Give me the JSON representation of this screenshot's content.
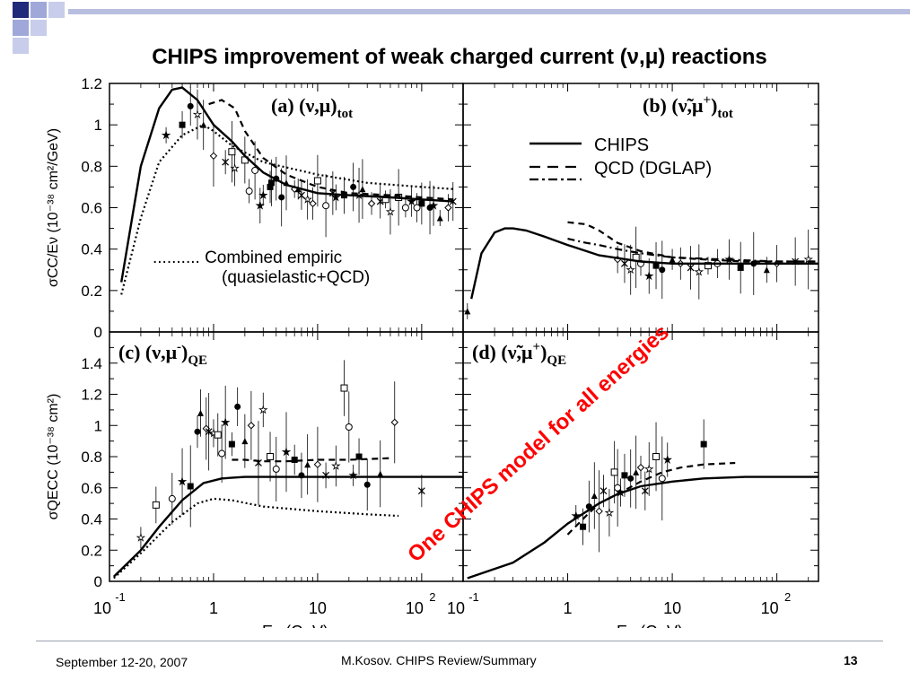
{
  "slide": {
    "title": "CHIPS improvement of weak charged current (ν,μ) reactions",
    "footer_date": "September 12-20, 2007",
    "footer_center": "M.Kosov. CHIPS Review/Summary",
    "page_number": "13",
    "banner": "One CHIPS model for all energies",
    "banner_color": "#ff0000",
    "accent_color": "#1f2a7a"
  },
  "chart_data": [
    {
      "type": "line",
      "panel": "(a) (ν,μ)tot",
      "title": "(a) (ν,μ)",
      "title_sub": "tot",
      "ylabel": "σCC/Eν (10⁻³⁸ cm²/GeV)",
      "yticks": [
        "1.2",
        "1",
        "0.8",
        "0.6",
        "0.4",
        "0.2",
        "0"
      ],
      "ylim": [
        0,
        1.2
      ],
      "xlim": [
        0.1,
        250
      ],
      "xscale": "log",
      "annotation": ".......... Combined empiric",
      "annotation2": "(quasielastic+QCD)",
      "series": [
        {
          "name": "CHIPS",
          "style": "solid",
          "x": [
            0.13,
            0.2,
            0.3,
            0.4,
            0.5,
            0.7,
            1,
            1.5,
            2,
            3,
            5,
            10,
            20,
            50,
            100,
            200
          ],
          "y": [
            0.24,
            0.8,
            1.08,
            1.17,
            1.18,
            1.12,
            1.0,
            0.92,
            0.85,
            0.77,
            0.71,
            0.67,
            0.66,
            0.65,
            0.64,
            0.63
          ]
        },
        {
          "name": "QCD (DGLAP)",
          "style": "dashed",
          "x": [
            0.9,
            1.2,
            1.6,
            2,
            3,
            5,
            10,
            20,
            50,
            100,
            200
          ],
          "y": [
            1.1,
            1.12,
            1.08,
            0.97,
            0.84,
            0.76,
            0.7,
            0.67,
            0.66,
            0.65,
            0.64
          ]
        },
        {
          "name": "Combined empiric",
          "style": "dotted",
          "x": [
            0.13,
            0.2,
            0.3,
            0.5,
            0.8,
            1,
            1.5,
            3,
            10,
            30,
            100,
            200
          ],
          "y": [
            0.18,
            0.55,
            0.82,
            0.95,
            1.0,
            0.97,
            0.9,
            0.82,
            0.76,
            0.72,
            0.7,
            0.69
          ]
        }
      ],
      "points": {
        "x": [
          0.35,
          0.5,
          0.6,
          0.8,
          1.0,
          1.3,
          1.6,
          2.0,
          2.5,
          3.0,
          3.5,
          4.0,
          5.0,
          6.0,
          7.0,
          8.0,
          10,
          12,
          15,
          18,
          22,
          27,
          33,
          40,
          50,
          60,
          70,
          80,
          100,
          120,
          150,
          180,
          200,
          0.7,
          1.5,
          2.2,
          2.8,
          3.6,
          4.5,
          6.5,
          9,
          14,
          25,
          45,
          90,
          130
        ],
        "y": [
          0.95,
          1.0,
          1.09,
          1.0,
          0.85,
          0.82,
          0.79,
          0.83,
          0.78,
          0.66,
          0.7,
          0.74,
          0.72,
          0.69,
          0.66,
          0.64,
          0.73,
          0.61,
          0.65,
          0.66,
          0.7,
          0.69,
          0.62,
          0.63,
          0.58,
          0.65,
          0.6,
          0.63,
          0.62,
          0.6,
          0.55,
          0.6,
          0.63,
          1.05,
          0.87,
          0.68,
          0.61,
          0.72,
          0.65,
          0.69,
          0.62,
          0.67,
          0.66,
          0.64,
          0.6,
          0.61
        ]
      }
    },
    {
      "type": "line",
      "panel": "(b) (ν̃,μ+)tot",
      "title": "(b) (ν̃,μ",
      "title_sup": "+",
      "title_end": ")",
      "title_sub": "tot",
      "xlim": [
        0.1,
        250
      ],
      "xscale": "log",
      "ylim": [
        0,
        1.2
      ],
      "legend": [
        "CHIPS",
        "QCD (DGLAP)"
      ],
      "series": [
        {
          "name": "CHIPS",
          "style": "solid",
          "x": [
            0.12,
            0.15,
            0.2,
            0.25,
            0.3,
            0.4,
            0.6,
            1,
            2,
            5,
            10,
            30,
            100,
            250
          ],
          "y": [
            0.16,
            0.38,
            0.48,
            0.5,
            0.5,
            0.49,
            0.46,
            0.42,
            0.37,
            0.34,
            0.33,
            0.33,
            0.33,
            0.33
          ]
        },
        {
          "name": "QCD (DGLAP)",
          "style": "dashed",
          "x": [
            1,
            1.5,
            2,
            3,
            5,
            10,
            20,
            50,
            100,
            250
          ],
          "y": [
            0.53,
            0.52,
            0.49,
            0.43,
            0.39,
            0.36,
            0.35,
            0.34,
            0.34,
            0.34
          ]
        },
        {
          "name": "Combined empiric",
          "style": "dashdot",
          "x": [
            1,
            1.5,
            2,
            3,
            5,
            10,
            30,
            100,
            250
          ],
          "y": [
            0.45,
            0.43,
            0.42,
            0.4,
            0.38,
            0.36,
            0.35,
            0.34,
            0.34
          ]
        }
      ],
      "points": {
        "x": [
          0.11,
          3,
          3.5,
          4,
          4.5,
          5,
          6,
          7,
          8,
          10,
          12,
          15,
          18,
          22,
          27,
          35,
          45,
          60,
          80,
          100,
          150,
          200
        ],
        "y": [
          0.1,
          0.35,
          0.33,
          0.3,
          0.36,
          0.33,
          0.27,
          0.32,
          0.3,
          0.35,
          0.33,
          0.31,
          0.29,
          0.32,
          0.33,
          0.35,
          0.31,
          0.33,
          0.3,
          0.33,
          0.34,
          0.35
        ]
      }
    },
    {
      "type": "line",
      "panel": "(c) (ν,μ-)QE",
      "title": "(c) (ν,μ",
      "title_sup": "-",
      "title_end": ")",
      "title_sub": "QE",
      "ylabel": "σQECC (10⁻³⁸ cm²)",
      "yticks": [
        "1.4",
        "1.2",
        "1",
        "0.8",
        "0.6",
        "0.4",
        "0.2",
        "0"
      ],
      "ylim": [
        0,
        1.6
      ],
      "xlim": [
        0.1,
        250
      ],
      "xscale": "log",
      "xticks": [
        "10",
        "1",
        "10",
        "10"
      ],
      "xtick_exps": [
        "-1",
        "",
        "",
        "2"
      ],
      "xlabel": "Eν (GeV)",
      "series": [
        {
          "name": "CHIPS",
          "style": "solid",
          "x": [
            0.11,
            0.2,
            0.3,
            0.5,
            0.8,
            1.2,
            2,
            5,
            10,
            30,
            100,
            250
          ],
          "y": [
            0.03,
            0.2,
            0.35,
            0.52,
            0.63,
            0.66,
            0.67,
            0.67,
            0.67,
            0.67,
            0.67,
            0.67
          ]
        },
        {
          "name": "QCD (DGLAP)",
          "style": "dashed",
          "x": [
            1.5,
            2,
            3,
            5,
            10,
            20,
            50
          ],
          "y": [
            0.78,
            0.78,
            0.77,
            0.77,
            0.78,
            0.78,
            0.79
          ]
        },
        {
          "name": "Combined empiric",
          "style": "dotted",
          "x": [
            0.11,
            0.2,
            0.4,
            0.7,
            1.0,
            1.5,
            3,
            10,
            30,
            60
          ],
          "y": [
            0.02,
            0.18,
            0.38,
            0.5,
            0.53,
            0.52,
            0.48,
            0.45,
            0.43,
            0.42
          ]
        }
      ],
      "points": {
        "x": [
          0.2,
          0.28,
          0.4,
          0.5,
          0.6,
          0.7,
          0.75,
          0.85,
          0.9,
          1.0,
          1.1,
          1.2,
          1.3,
          1.5,
          1.7,
          2.0,
          2.3,
          2.7,
          3.0,
          3.5,
          4,
          5,
          6,
          7,
          8,
          10,
          12,
          15,
          18,
          20,
          22,
          25,
          30,
          40,
          55,
          100
        ],
        "y": [
          0.28,
          0.49,
          0.53,
          0.64,
          0.61,
          0.96,
          1.08,
          0.98,
          0.96,
          0.95,
          0.94,
          0.82,
          1.02,
          0.88,
          1.12,
          0.9,
          1.0,
          0.76,
          1.1,
          0.8,
          0.72,
          0.83,
          0.78,
          0.68,
          0.75,
          0.75,
          0.68,
          0.74,
          1.24,
          0.99,
          0.68,
          0.8,
          0.62,
          0.69,
          1.02,
          0.58
        ]
      }
    },
    {
      "type": "line",
      "panel": "(d) (ν̃,μ+)QE",
      "title": "(d) (ν̃,μ",
      "title_sup": "+",
      "title_end": ")",
      "title_sub": "QE",
      "ylim": [
        0,
        1.6
      ],
      "xlim": [
        0.1,
        250
      ],
      "xscale": "log",
      "xticks": [
        "10",
        "1",
        "10",
        "10"
      ],
      "xtick_exps": [
        "-1",
        "",
        "",
        "2"
      ],
      "xlabel": "Eν (GeV)",
      "series": [
        {
          "name": "CHIPS",
          "style": "solid",
          "x": [
            0.11,
            0.3,
            0.6,
            1,
            2,
            3,
            5,
            10,
            20,
            50,
            100,
            250
          ],
          "y": [
            0.02,
            0.12,
            0.25,
            0.37,
            0.5,
            0.56,
            0.61,
            0.64,
            0.66,
            0.67,
            0.67,
            0.67
          ]
        },
        {
          "name": "QCD (DGLAP)",
          "style": "dashed",
          "x": [
            1.0,
            1.5,
            2,
            3,
            5,
            8,
            12,
            20,
            40
          ],
          "y": [
            0.3,
            0.42,
            0.5,
            0.56,
            0.64,
            0.7,
            0.73,
            0.75,
            0.76
          ]
        }
      ],
      "points": {
        "x": [
          1.2,
          1.4,
          1.6,
          1.8,
          2.0,
          2.2,
          2.5,
          2.8,
          3.0,
          3.2,
          3.5,
          4.0,
          4.5,
          5.0,
          5.5,
          6.0,
          7.0,
          8.0,
          9.0,
          20
        ],
        "y": [
          0.42,
          0.35,
          0.48,
          0.55,
          0.45,
          0.58,
          0.44,
          0.7,
          0.6,
          0.57,
          0.68,
          0.66,
          0.7,
          0.73,
          0.58,
          0.72,
          0.8,
          0.66,
          0.78,
          0.88
        ]
      }
    }
  ]
}
